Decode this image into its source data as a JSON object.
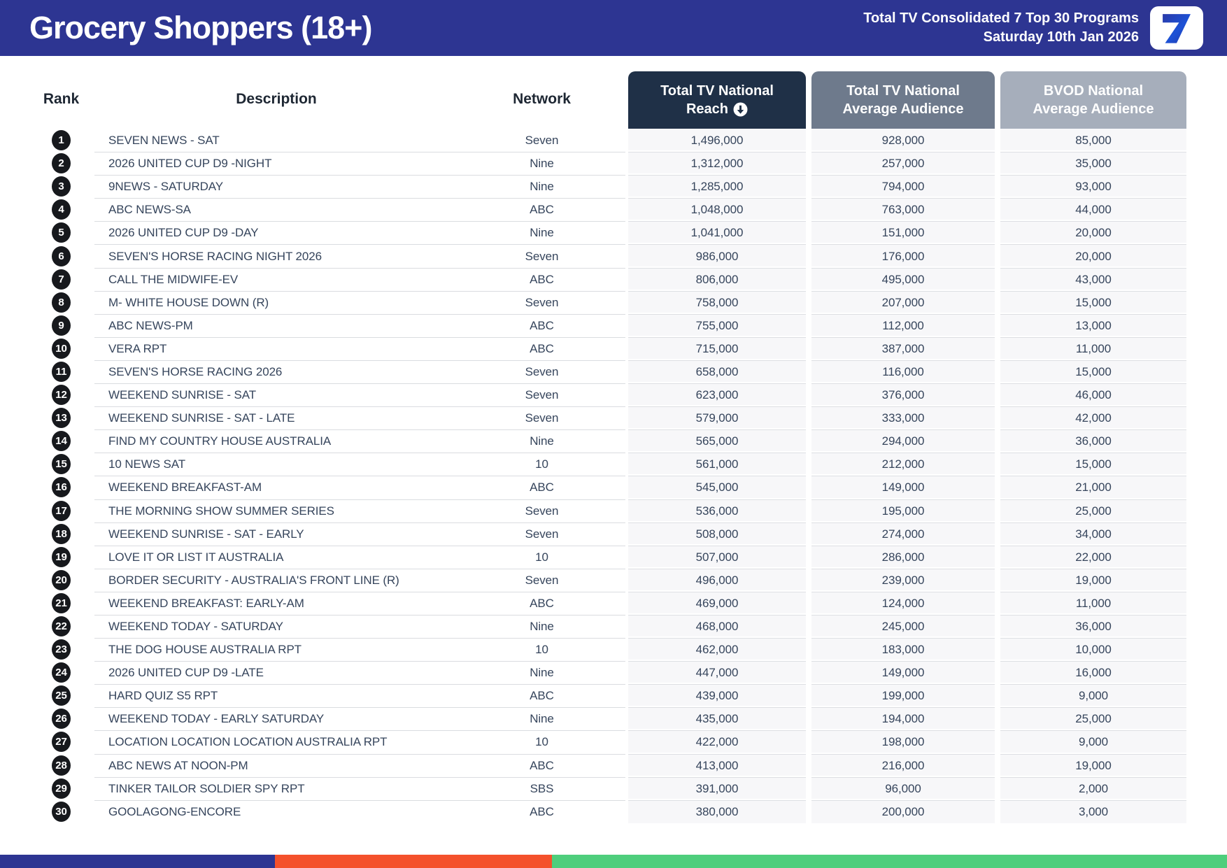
{
  "header": {
    "title": "Grocery Shoppers (18+)",
    "subtitle_line1": "Total TV Consolidated 7 Top 30 Programs",
    "subtitle_line2": "Saturday 10th Jan 2026",
    "logo_glyph": "7"
  },
  "colors": {
    "header_bar": "#2D3592",
    "reach_block": "#1F3047",
    "avg_block": "#6E7A8C",
    "bvod_block": "#A6AEBB",
    "stripe_blue": "#2D3592",
    "stripe_orange": "#F4512C",
    "stripe_green": "#4ECE7C"
  },
  "table": {
    "headers": {
      "rank": "Rank",
      "description": "Description",
      "network": "Network",
      "reach_line1": "Total TV National",
      "reach_line2": "Reach",
      "avg_line1": "Total TV National",
      "avg_line2": "Average Audience",
      "bvod_line1": "BVOD National",
      "bvod_line2": "Average Audience"
    },
    "sort_icon": "circle-arrow-down",
    "rows": [
      {
        "rank": "1",
        "description": "SEVEN NEWS - SAT",
        "network": "Seven",
        "reach": "1,496,000",
        "avg": "928,000",
        "bvod": "85,000"
      },
      {
        "rank": "2",
        "description": "2026 UNITED CUP D9 -NIGHT",
        "network": "Nine",
        "reach": "1,312,000",
        "avg": "257,000",
        "bvod": "35,000"
      },
      {
        "rank": "3",
        "description": "9NEWS - SATURDAY",
        "network": "Nine",
        "reach": "1,285,000",
        "avg": "794,000",
        "bvod": "93,000"
      },
      {
        "rank": "4",
        "description": "ABC NEWS-SA",
        "network": "ABC",
        "reach": "1,048,000",
        "avg": "763,000",
        "bvod": "44,000"
      },
      {
        "rank": "5",
        "description": "2026 UNITED CUP D9 -DAY",
        "network": "Nine",
        "reach": "1,041,000",
        "avg": "151,000",
        "bvod": "20,000"
      },
      {
        "rank": "6",
        "description": "SEVEN'S HORSE RACING NIGHT 2026",
        "network": "Seven",
        "reach": "986,000",
        "avg": "176,000",
        "bvod": "20,000"
      },
      {
        "rank": "7",
        "description": "CALL THE MIDWIFE-EV",
        "network": "ABC",
        "reach": "806,000",
        "avg": "495,000",
        "bvod": "43,000"
      },
      {
        "rank": "8",
        "description": "M- WHITE HOUSE DOWN (R)",
        "network": "Seven",
        "reach": "758,000",
        "avg": "207,000",
        "bvod": "15,000"
      },
      {
        "rank": "9",
        "description": "ABC NEWS-PM",
        "network": "ABC",
        "reach": "755,000",
        "avg": "112,000",
        "bvod": "13,000"
      },
      {
        "rank": "10",
        "description": "VERA RPT",
        "network": "ABC",
        "reach": "715,000",
        "avg": "387,000",
        "bvod": "11,000"
      },
      {
        "rank": "11",
        "description": "SEVEN'S HORSE RACING 2026",
        "network": "Seven",
        "reach": "658,000",
        "avg": "116,000",
        "bvod": "15,000"
      },
      {
        "rank": "12",
        "description": "WEEKEND SUNRISE - SAT",
        "network": "Seven",
        "reach": "623,000",
        "avg": "376,000",
        "bvod": "46,000"
      },
      {
        "rank": "13",
        "description": "WEEKEND SUNRISE - SAT - LATE",
        "network": "Seven",
        "reach": "579,000",
        "avg": "333,000",
        "bvod": "42,000"
      },
      {
        "rank": "14",
        "description": "FIND MY COUNTRY HOUSE AUSTRALIA",
        "network": "Nine",
        "reach": "565,000",
        "avg": "294,000",
        "bvod": "36,000"
      },
      {
        "rank": "15",
        "description": "10 NEWS SAT",
        "network": "10",
        "reach": "561,000",
        "avg": "212,000",
        "bvod": "15,000"
      },
      {
        "rank": "16",
        "description": "WEEKEND BREAKFAST-AM",
        "network": "ABC",
        "reach": "545,000",
        "avg": "149,000",
        "bvod": "21,000"
      },
      {
        "rank": "17",
        "description": "THE MORNING SHOW SUMMER SERIES",
        "network": "Seven",
        "reach": "536,000",
        "avg": "195,000",
        "bvod": "25,000"
      },
      {
        "rank": "18",
        "description": "WEEKEND SUNRISE - SAT - EARLY",
        "network": "Seven",
        "reach": "508,000",
        "avg": "274,000",
        "bvod": "34,000"
      },
      {
        "rank": "19",
        "description": "LOVE IT OR LIST IT AUSTRALIA",
        "network": "10",
        "reach": "507,000",
        "avg": "286,000",
        "bvod": "22,000"
      },
      {
        "rank": "20",
        "description": "BORDER SECURITY - AUSTRALIA'S FRONT LINE (R)",
        "network": "Seven",
        "reach": "496,000",
        "avg": "239,000",
        "bvod": "19,000"
      },
      {
        "rank": "21",
        "description": "WEEKEND BREAKFAST: EARLY-AM",
        "network": "ABC",
        "reach": "469,000",
        "avg": "124,000",
        "bvod": "11,000"
      },
      {
        "rank": "22",
        "description": "WEEKEND TODAY - SATURDAY",
        "network": "Nine",
        "reach": "468,000",
        "avg": "245,000",
        "bvod": "36,000"
      },
      {
        "rank": "23",
        "description": "THE DOG HOUSE AUSTRALIA RPT",
        "network": "10",
        "reach": "462,000",
        "avg": "183,000",
        "bvod": "10,000"
      },
      {
        "rank": "24",
        "description": "2026 UNITED CUP D9 -LATE",
        "network": "Nine",
        "reach": "447,000",
        "avg": "149,000",
        "bvod": "16,000"
      },
      {
        "rank": "25",
        "description": "HARD QUIZ S5 RPT",
        "network": "ABC",
        "reach": "439,000",
        "avg": "199,000",
        "bvod": "9,000"
      },
      {
        "rank": "26",
        "description": "WEEKEND TODAY - EARLY SATURDAY",
        "network": "Nine",
        "reach": "435,000",
        "avg": "194,000",
        "bvod": "25,000"
      },
      {
        "rank": "27",
        "description": "LOCATION LOCATION LOCATION AUSTRALIA RPT",
        "network": "10",
        "reach": "422,000",
        "avg": "198,000",
        "bvod": "9,000"
      },
      {
        "rank": "28",
        "description": "ABC NEWS AT NOON-PM",
        "network": "ABC",
        "reach": "413,000",
        "avg": "216,000",
        "bvod": "19,000"
      },
      {
        "rank": "29",
        "description": "TINKER TAILOR SOLDIER SPY RPT",
        "network": "SBS",
        "reach": "391,000",
        "avg": "96,000",
        "bvod": "2,000"
      },
      {
        "rank": "30",
        "description": "GOOLAGONG-ENCORE",
        "network": "ABC",
        "reach": "380,000",
        "avg": "200,000",
        "bvod": "3,000"
      }
    ]
  }
}
